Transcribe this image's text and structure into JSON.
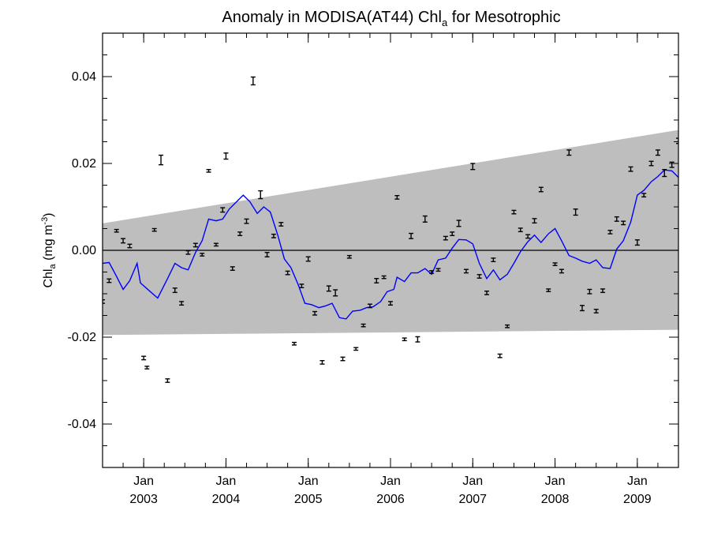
{
  "chart_data": {
    "type": "line",
    "title": "Anomaly in MODISA(AT44) Chl",
    "title_subscript": "a",
    "title_suffix": " for Mesotrophic",
    "ylabel": "Chl",
    "ylabel_subscript": "a",
    "ylabel_units": " (mg m",
    "ylabel_units_sup": "-3",
    "ylabel_close": ")",
    "ylim": [
      -0.05,
      0.05
    ],
    "y_ticks": [
      -0.04,
      -0.02,
      0.0,
      0.02,
      0.04
    ],
    "y_tick_labels": [
      "-0.04",
      "-0.02",
      "0.00",
      "0.02",
      "0.04"
    ],
    "xlim": [
      2002.5,
      2009.5
    ],
    "x_ticks": [
      2003.0,
      2004.0,
      2005.0,
      2006.0,
      2007.0,
      2008.0,
      2009.0
    ],
    "x_tick_month": "Jan",
    "x_tick_years": [
      "2003",
      "2004",
      "2005",
      "2006",
      "2007",
      "2008",
      "2009"
    ],
    "zero_line": 0.0,
    "band": {
      "color": "#bebebe",
      "upper": [
        [
          2002.5,
          0.0062
        ],
        [
          2009.5,
          0.0277
        ]
      ],
      "lower": [
        [
          2002.5,
          -0.0195
        ],
        [
          2009.5,
          -0.0183
        ]
      ]
    },
    "series": [
      {
        "kind": "smoothed",
        "color": "#0000ff",
        "points": [
          [
            2002.5,
            -0.003
          ],
          [
            2002.58,
            -0.0028
          ],
          [
            2002.67,
            -0.006
          ],
          [
            2002.75,
            -0.009
          ],
          [
            2002.83,
            -0.007
          ],
          [
            2002.92,
            -0.003
          ],
          [
            2002.96,
            -0.0075
          ],
          [
            2003.08,
            -0.0095
          ],
          [
            2003.17,
            -0.011
          ],
          [
            2003.29,
            -0.0065
          ],
          [
            2003.38,
            -0.003
          ],
          [
            2003.46,
            -0.004
          ],
          [
            2003.54,
            -0.0045
          ],
          [
            2003.63,
            -0.0005
          ],
          [
            2003.71,
            0.0022
          ],
          [
            2003.79,
            0.0072
          ],
          [
            2003.88,
            0.0068
          ],
          [
            2003.96,
            0.0072
          ],
          [
            2004.04,
            0.0095
          ],
          [
            2004.13,
            0.0112
          ],
          [
            2004.21,
            0.0127
          ],
          [
            2004.29,
            0.0112
          ],
          [
            2004.38,
            0.0085
          ],
          [
            2004.46,
            0.01
          ],
          [
            2004.54,
            0.0088
          ],
          [
            2004.63,
            0.0035
          ],
          [
            2004.71,
            -0.002
          ],
          [
            2004.79,
            -0.004
          ],
          [
            2004.88,
            -0.008
          ],
          [
            2004.96,
            -0.0122
          ],
          [
            2005.04,
            -0.0125
          ],
          [
            2005.13,
            -0.0132
          ],
          [
            2005.21,
            -0.0128
          ],
          [
            2005.29,
            -0.0122
          ],
          [
            2005.38,
            -0.0155
          ],
          [
            2005.46,
            -0.0158
          ],
          [
            2005.54,
            -0.014
          ],
          [
            2005.63,
            -0.0138
          ],
          [
            2005.71,
            -0.0132
          ],
          [
            2005.79,
            -0.013
          ],
          [
            2005.88,
            -0.0118
          ],
          [
            2005.96,
            -0.0095
          ],
          [
            2006.04,
            -0.009
          ],
          [
            2006.08,
            -0.0062
          ],
          [
            2006.17,
            -0.0072
          ],
          [
            2006.25,
            -0.0052
          ],
          [
            2006.33,
            -0.0052
          ],
          [
            2006.42,
            -0.0042
          ],
          [
            2006.5,
            -0.0055
          ],
          [
            2006.58,
            -0.0022
          ],
          [
            2006.67,
            -0.0018
          ],
          [
            2006.75,
            0.0005
          ],
          [
            2006.83,
            0.0025
          ],
          [
            2006.92,
            0.0024
          ],
          [
            2007.0,
            0.0015
          ],
          [
            2007.08,
            -0.003
          ],
          [
            2007.17,
            -0.0065
          ],
          [
            2007.25,
            -0.0045
          ],
          [
            2007.33,
            -0.0068
          ],
          [
            2007.42,
            -0.0055
          ],
          [
            2007.5,
            -0.003
          ],
          [
            2007.58,
            -0.0003
          ],
          [
            2007.67,
            0.002
          ],
          [
            2007.75,
            0.0035
          ],
          [
            2007.83,
            0.0018
          ],
          [
            2007.92,
            0.0038
          ],
          [
            2008.0,
            0.005
          ],
          [
            2008.08,
            0.0022
          ],
          [
            2008.17,
            -0.0012
          ],
          [
            2008.25,
            -0.0018
          ],
          [
            2008.33,
            -0.0025
          ],
          [
            2008.42,
            -0.003
          ],
          [
            2008.5,
            -0.0022
          ],
          [
            2008.58,
            -0.004
          ],
          [
            2008.67,
            -0.0042
          ],
          [
            2008.75,
            0.0003
          ],
          [
            2008.83,
            0.0022
          ],
          [
            2008.92,
            0.0065
          ],
          [
            2009.0,
            0.0127
          ],
          [
            2009.08,
            0.0138
          ],
          [
            2009.17,
            0.0158
          ],
          [
            2009.25,
            0.017
          ],
          [
            2009.33,
            0.0185
          ],
          [
            2009.42,
            0.0183
          ],
          [
            2009.5,
            0.0168
          ]
        ]
      },
      {
        "kind": "monthly_errorbars",
        "color": "#000000",
        "points": [
          [
            2002.5,
            -0.0118,
            0.0004
          ],
          [
            2002.58,
            -0.007,
            0.0004
          ],
          [
            2002.67,
            0.0045,
            0.0003
          ],
          [
            2002.75,
            0.0022,
            0.0005
          ],
          [
            2002.83,
            0.001,
            0.0004
          ],
          [
            2003.0,
            -0.0248,
            0.0004
          ],
          [
            2003.04,
            -0.027,
            0.0003
          ],
          [
            2003.13,
            0.0047,
            0.0003
          ],
          [
            2003.21,
            0.0208,
            0.0011
          ],
          [
            2003.29,
            -0.03,
            0.0004
          ],
          [
            2003.38,
            -0.0092,
            0.0005
          ],
          [
            2003.46,
            -0.0122,
            0.0004
          ],
          [
            2003.54,
            -0.0005,
            0.0004
          ],
          [
            2003.63,
            0.0012,
            0.0004
          ],
          [
            2003.71,
            -0.001,
            0.0003
          ],
          [
            2003.79,
            0.0183,
            0.0003
          ],
          [
            2003.88,
            0.0013,
            0.0003
          ],
          [
            2003.96,
            0.0093,
            0.0005
          ],
          [
            2004.0,
            0.0217,
            0.0007
          ],
          [
            2004.08,
            -0.0042,
            0.0004
          ],
          [
            2004.17,
            0.0038,
            0.0004
          ],
          [
            2004.25,
            0.0067,
            0.0005
          ],
          [
            2004.33,
            0.039,
            0.0009
          ],
          [
            2004.42,
            0.0128,
            0.0009
          ],
          [
            2004.5,
            -0.001,
            0.0005
          ],
          [
            2004.58,
            0.0033,
            0.0004
          ],
          [
            2004.67,
            0.006,
            0.0004
          ],
          [
            2004.75,
            -0.0052,
            0.0004
          ],
          [
            2004.83,
            -0.0215,
            0.0003
          ],
          [
            2004.92,
            -0.0082,
            0.0004
          ],
          [
            2005.0,
            -0.002,
            0.0005
          ],
          [
            2005.08,
            -0.0145,
            0.0004
          ],
          [
            2005.17,
            -0.0258,
            0.0004
          ],
          [
            2005.25,
            -0.0088,
            0.0006
          ],
          [
            2005.33,
            -0.0098,
            0.0007
          ],
          [
            2005.42,
            -0.025,
            0.0004
          ],
          [
            2005.5,
            -0.0015,
            0.0003
          ],
          [
            2005.58,
            -0.0227,
            0.0003
          ],
          [
            2005.67,
            -0.0173,
            0.0003
          ],
          [
            2005.75,
            -0.0128,
            0.0004
          ],
          [
            2005.83,
            -0.007,
            0.0005
          ],
          [
            2005.92,
            -0.0062,
            0.0003
          ],
          [
            2006.0,
            -0.0122,
            0.0004
          ],
          [
            2006.08,
            0.0122,
            0.0004
          ],
          [
            2006.17,
            -0.0205,
            0.0003
          ],
          [
            2006.25,
            0.0033,
            0.0006
          ],
          [
            2006.33,
            -0.0205,
            0.0006
          ],
          [
            2006.42,
            0.0072,
            0.0007
          ],
          [
            2006.5,
            -0.005,
            0.0003
          ],
          [
            2006.58,
            -0.0045,
            0.0003
          ],
          [
            2006.67,
            0.0028,
            0.0004
          ],
          [
            2006.75,
            0.0038,
            0.0004
          ],
          [
            2006.83,
            0.0062,
            0.0007
          ],
          [
            2006.92,
            -0.0048,
            0.0004
          ],
          [
            2007.0,
            0.0193,
            0.0007
          ],
          [
            2007.08,
            -0.006,
            0.0004
          ],
          [
            2007.17,
            -0.0098,
            0.0004
          ],
          [
            2007.25,
            -0.0022,
            0.0004
          ],
          [
            2007.33,
            -0.0243,
            0.0004
          ],
          [
            2007.42,
            -0.0175,
            0.0003
          ],
          [
            2007.5,
            0.0088,
            0.0004
          ],
          [
            2007.58,
            0.0047,
            0.0004
          ],
          [
            2007.67,
            0.0032,
            0.0004
          ],
          [
            2007.75,
            0.0068,
            0.0005
          ],
          [
            2007.83,
            0.014,
            0.0005
          ],
          [
            2007.92,
            -0.0092,
            0.0003
          ],
          [
            2008.0,
            -0.0032,
            0.0003
          ],
          [
            2008.08,
            -0.0048,
            0.0004
          ],
          [
            2008.17,
            0.0225,
            0.0006
          ],
          [
            2008.25,
            0.0088,
            0.0007
          ],
          [
            2008.33,
            -0.0133,
            0.0006
          ],
          [
            2008.42,
            -0.0095,
            0.0005
          ],
          [
            2008.5,
            -0.014,
            0.0004
          ],
          [
            2008.58,
            -0.0093,
            0.0004
          ],
          [
            2008.67,
            0.0042,
            0.0004
          ],
          [
            2008.75,
            0.0072,
            0.0005
          ],
          [
            2008.83,
            0.0063,
            0.0004
          ],
          [
            2008.92,
            0.0187,
            0.0005
          ],
          [
            2009.0,
            0.0018,
            0.0006
          ],
          [
            2009.08,
            0.0127,
            0.0004
          ],
          [
            2009.17,
            0.02,
            0.0005
          ],
          [
            2009.25,
            0.0225,
            0.0006
          ],
          [
            2009.33,
            0.0178,
            0.0008
          ],
          [
            2009.42,
            0.0197,
            0.0006
          ],
          [
            2009.5,
            0.0252,
            0.0006
          ]
        ]
      }
    ]
  }
}
